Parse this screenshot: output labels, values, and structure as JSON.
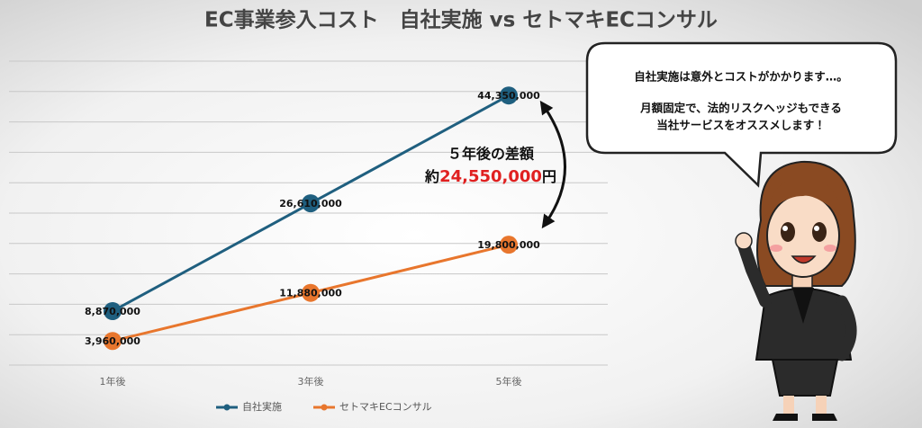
{
  "chart_data": {
    "type": "line",
    "title": "EC事業参入コスト　自社実施 vs セトマキECコンサル",
    "categories": [
      "1年後",
      "3年後",
      "5年後"
    ],
    "series": [
      {
        "name": "自社実施",
        "color": "#1f5f7f",
        "values": [
          8870000,
          26610000,
          44350000
        ],
        "value_labels": [
          "8,870,000",
          "26,610,000",
          "44,350,000"
        ]
      },
      {
        "name": "セトマキECコンサル",
        "color": "#e8762d",
        "values": [
          3960000,
          11880000,
          19800000
        ],
        "value_labels": [
          "3,960,000",
          "11,880,000",
          "19,800,000"
        ]
      }
    ],
    "ylim": [
      0,
      50000000
    ],
    "yticks": [
      0,
      5000000,
      10000000,
      15000000,
      20000000,
      25000000,
      30000000,
      35000000,
      40000000,
      45000000,
      50000000
    ],
    "grid": true,
    "legend": "bottom",
    "annotation": {
      "line1": "５年後の差額",
      "prefix": "約",
      "amount": "24,550,000",
      "suffix": "円",
      "amount_color": "#e02020"
    },
    "speech_bubble": [
      "自社実施は意外とコストがかかります…。",
      "月額固定で、法的リスクヘッジもできる",
      "当社サービスをオススメします！"
    ]
  }
}
